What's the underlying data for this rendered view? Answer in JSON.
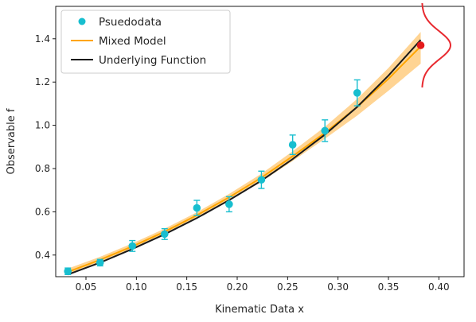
{
  "chart_data": {
    "type": "scatter",
    "title": "",
    "xlabel": "Kinematic Data x",
    "ylabel": "Observable f",
    "xlim": [
      0.02,
      0.425
    ],
    "ylim": [
      0.3,
      1.55
    ],
    "xticks": [
      0.05,
      0.1,
      0.15,
      0.2,
      0.25,
      0.3,
      0.35,
      0.4
    ],
    "xtick_labels": [
      "0.05",
      "0.10",
      "0.15",
      "0.20",
      "0.25",
      "0.30",
      "0.35",
      "0.40"
    ],
    "yticks": [
      0.4,
      0.6,
      0.8,
      1.0,
      1.2,
      1.4
    ],
    "ytick_labels": [
      "0.4",
      "0.6",
      "0.8",
      "1.0",
      "1.2",
      "1.4"
    ],
    "grid": false,
    "legend_position": "top-left",
    "series": [
      {
        "name": "Psuedodata",
        "kind": "errorbar-points",
        "color": "#17becf",
        "points": [
          {
            "x": 0.032,
            "y": 0.325,
            "err": 0.015
          },
          {
            "x": 0.064,
            "y": 0.365,
            "err": 0.015
          },
          {
            "x": 0.096,
            "y": 0.442,
            "err": 0.025
          },
          {
            "x": 0.128,
            "y": 0.497,
            "err": 0.025
          },
          {
            "x": 0.16,
            "y": 0.618,
            "err": 0.035
          },
          {
            "x": 0.192,
            "y": 0.635,
            "err": 0.035
          },
          {
            "x": 0.224,
            "y": 0.748,
            "err": 0.04
          },
          {
            "x": 0.255,
            "y": 0.91,
            "err": 0.045
          },
          {
            "x": 0.287,
            "y": 0.975,
            "err": 0.05
          },
          {
            "x": 0.319,
            "y": 1.15,
            "err": 0.06
          }
        ]
      },
      {
        "name": "Mixed Model",
        "kind": "line-with-band",
        "color": "#ffa500",
        "band_color": "#ffcc80",
        "x": [
          0.032,
          0.064,
          0.096,
          0.128,
          0.16,
          0.192,
          0.224,
          0.255,
          0.287,
          0.319,
          0.35,
          0.382
        ],
        "y": [
          0.322,
          0.378,
          0.44,
          0.508,
          0.584,
          0.667,
          0.758,
          0.857,
          0.965,
          1.085,
          1.215,
          1.365
        ],
        "lower": [
          0.308,
          0.366,
          0.429,
          0.497,
          0.571,
          0.652,
          0.74,
          0.835,
          0.938,
          1.045,
          1.16,
          1.285
        ],
        "upper": [
          0.337,
          0.392,
          0.454,
          0.522,
          0.598,
          0.683,
          0.776,
          0.88,
          0.993,
          1.122,
          1.265,
          1.432
        ]
      },
      {
        "name": "Underlying Function",
        "kind": "line",
        "color": "#1a1a1a",
        "x": [
          0.032,
          0.064,
          0.096,
          0.128,
          0.16,
          0.192,
          0.224,
          0.255,
          0.287,
          0.319,
          0.35,
          0.382
        ],
        "y": [
          0.31,
          0.365,
          0.428,
          0.496,
          0.571,
          0.654,
          0.744,
          0.844,
          0.957,
          1.085,
          1.23,
          1.395
        ]
      }
    ],
    "extra_point": {
      "x": 0.382,
      "y": 1.37,
      "color": "#e41a1c"
    },
    "distribution_curve": {
      "center_y": 1.37,
      "sigma": 0.065,
      "color": "#e8292f"
    }
  }
}
